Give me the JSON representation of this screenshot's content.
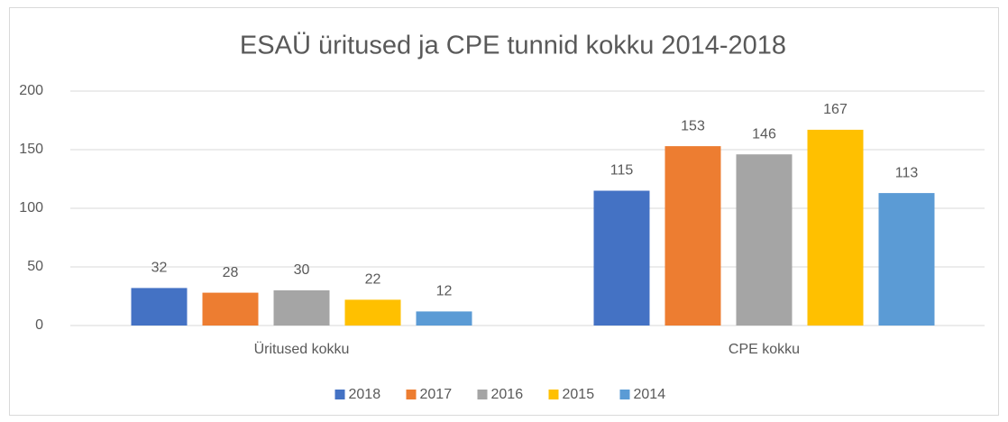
{
  "chart_data": {
    "type": "bar",
    "title": "ESAÜ üritused ja CPE tunnid kokku 2014-2018",
    "categories": [
      "Üritused kokku",
      "CPE kokku"
    ],
    "series": [
      {
        "name": "2018",
        "color": "#4472c4",
        "values": [
          32,
          115
        ]
      },
      {
        "name": "2017",
        "color": "#ed7d31",
        "values": [
          28,
          153
        ]
      },
      {
        "name": "2016",
        "color": "#a5a5a5",
        "values": [
          30,
          146
        ]
      },
      {
        "name": "2015",
        "color": "#ffc000",
        "values": [
          22,
          167
        ]
      },
      {
        "name": "2014",
        "color": "#5b9bd5",
        "values": [
          12,
          113
        ]
      }
    ],
    "ylim": [
      0,
      200
    ],
    "yticks": [
      0,
      50,
      100,
      150,
      200
    ],
    "grid": true,
    "legend": "bottom"
  }
}
